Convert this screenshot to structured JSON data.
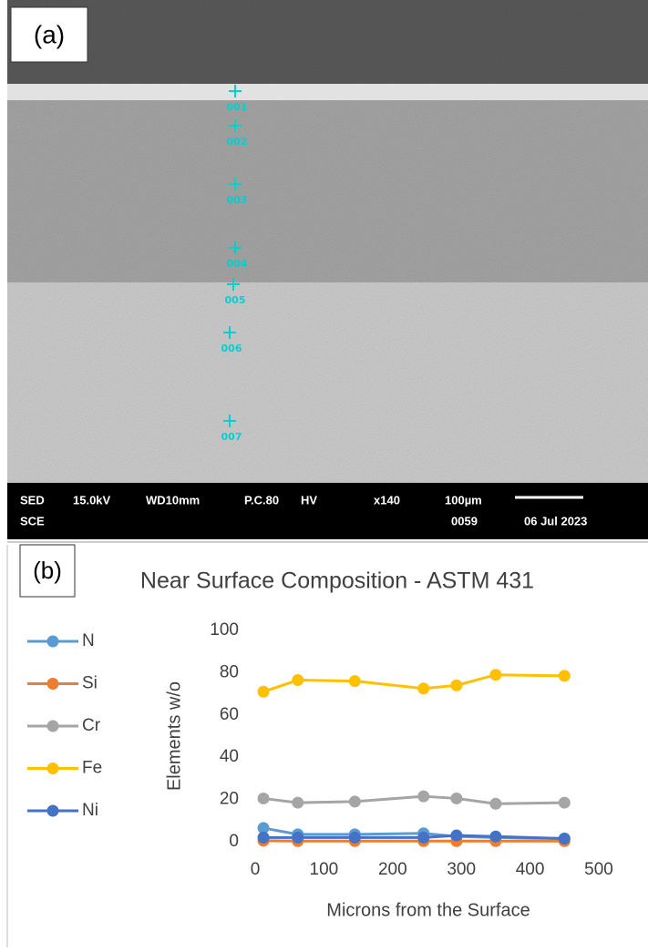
{
  "image": {
    "panel_label": "(a)",
    "points": [
      "001",
      "002",
      "003",
      "004",
      "005",
      "006",
      "007"
    ],
    "info_row1": [
      "SED",
      "15.0kV",
      "WD10mm",
      "P.C.80",
      "HV",
      "x140",
      "100µm"
    ],
    "info_row2": [
      "SCE",
      "0059",
      "06 Jul 2023"
    ]
  },
  "chart_data": {
    "type": "line",
    "panel_label": "(b)",
    "title": "Near Surface Composition - ASTM 431",
    "x_label": "Microns from the Surface",
    "y_label": "Elements w/o",
    "x": [
      12,
      62,
      145,
      245,
      293,
      350,
      450
    ],
    "xlim": [
      0,
      500
    ],
    "xticks": [
      0,
      100,
      200,
      300,
      400,
      500
    ],
    "ylim": [
      0,
      100
    ],
    "yticks": [
      0,
      20,
      40,
      60,
      80,
      100
    ],
    "grid": false,
    "legend": "left",
    "series": [
      {
        "name": "N",
        "color": "#5b9bd5",
        "values": [
          6.5,
          3.5,
          3.5,
          4,
          2.5,
          2,
          1.5
        ]
      },
      {
        "name": "Si",
        "color": "#ed7d31",
        "values": [
          0.5,
          0.3,
          0.3,
          0.3,
          0.3,
          0.3,
          0.3
        ]
      },
      {
        "name": "Cr",
        "color": "#a5a5a5",
        "values": [
          20.5,
          18.5,
          19,
          21.5,
          20.5,
          18,
          18.5
        ]
      },
      {
        "name": "Fe",
        "color": "#ffc000",
        "values": [
          71,
          76.5,
          76,
          72.5,
          74,
          79,
          78.5
        ]
      },
      {
        "name": "Ni",
        "color": "#4472c4",
        "values": [
          2,
          2,
          2,
          2,
          3,
          2.5,
          1.5
        ]
      }
    ]
  }
}
